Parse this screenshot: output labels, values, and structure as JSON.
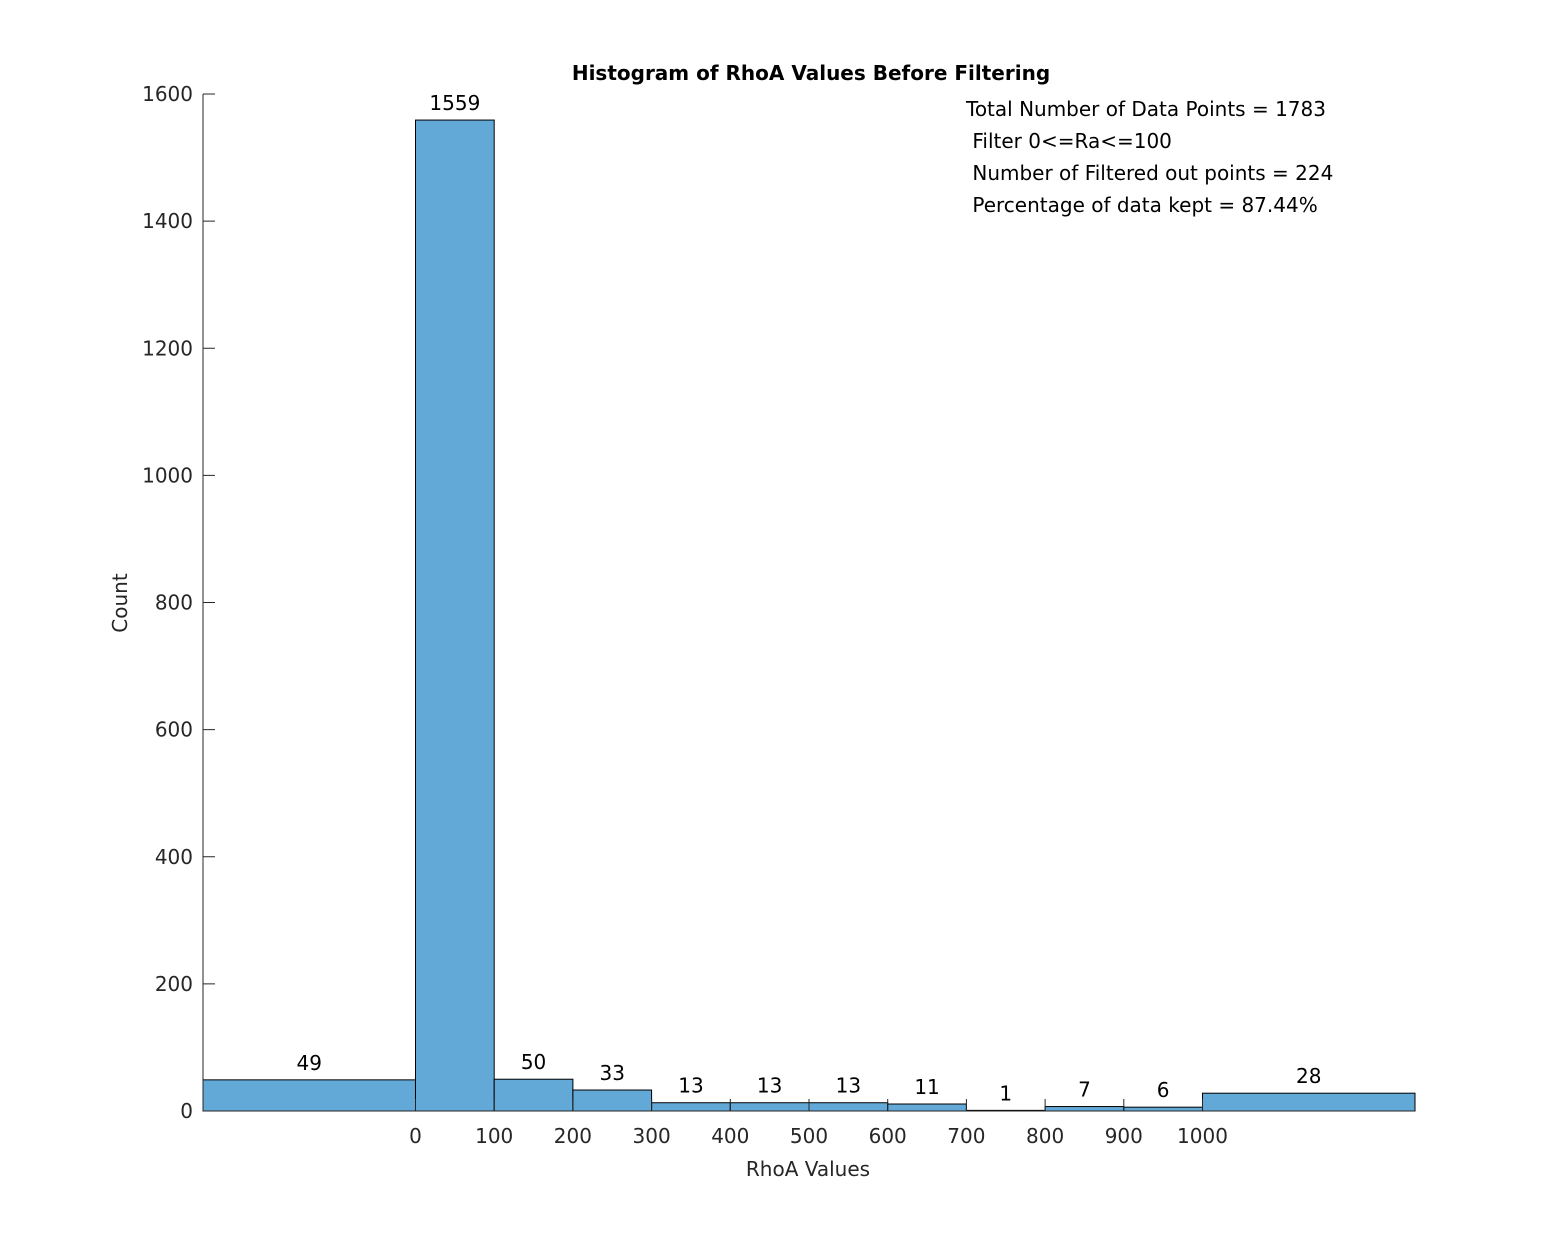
{
  "chart_data": {
    "type": "bar",
    "title": "Histogram of RhoA Values Before Filtering",
    "xlabel": "RhoA Values",
    "ylabel": "Count",
    "ylim": [
      0,
      1600
    ],
    "yticks": [
      0,
      200,
      400,
      600,
      800,
      1000,
      1200,
      1400,
      1600
    ],
    "xtick_labels": [
      "0",
      "100",
      "200",
      "300",
      "400",
      "500",
      "600",
      "700",
      "800",
      "900",
      "1000"
    ],
    "xtick_values": [
      0,
      100,
      200,
      300,
      400,
      500,
      600,
      700,
      800,
      900,
      1000
    ],
    "bins": [
      {
        "from": -270,
        "to": 0,
        "count": 49,
        "label": "49"
      },
      {
        "from": 0,
        "to": 100,
        "count": 1559,
        "label": "1559"
      },
      {
        "from": 100,
        "to": 200,
        "count": 50,
        "label": "50"
      },
      {
        "from": 200,
        "to": 300,
        "count": 33,
        "label": "33"
      },
      {
        "from": 300,
        "to": 400,
        "count": 13,
        "label": "13"
      },
      {
        "from": 400,
        "to": 500,
        "count": 13,
        "label": "13"
      },
      {
        "from": 500,
        "to": 600,
        "count": 13,
        "label": "13"
      },
      {
        "from": 600,
        "to": 700,
        "count": 11,
        "label": "11"
      },
      {
        "from": 700,
        "to": 800,
        "count": 1,
        "label": "1"
      },
      {
        "from": 800,
        "to": 900,
        "count": 7,
        "label": "7"
      },
      {
        "from": 900,
        "to": 1000,
        "count": 6,
        "label": "6"
      },
      {
        "from": 1000,
        "to": 1270,
        "count": 28,
        "label": "28"
      }
    ],
    "xlim": [
      -270,
      1270
    ],
    "bar_color": "#63a9d8",
    "edge_color": "#000000",
    "grid": false,
    "annotations": [
      "Total Number of Data Points = 1783",
      " Filter 0<=Ra<=100",
      " Number of Filtered out points = 224",
      " Percentage of data kept = 87.44%"
    ]
  }
}
